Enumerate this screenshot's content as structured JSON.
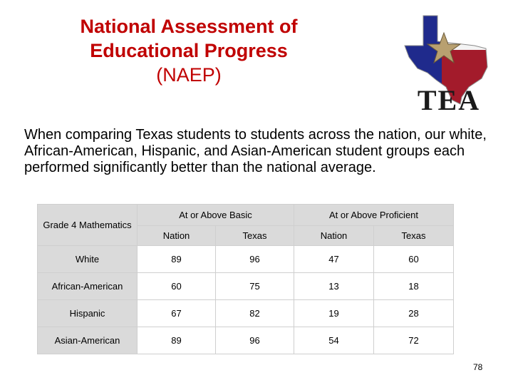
{
  "title": {
    "line1": "National Assessment of",
    "line2": "Educational Progress",
    "line3": "(NAEP)"
  },
  "logo": {
    "text": "TEA",
    "icon": "texas-flag-star-icon",
    "colors": {
      "blue": "#1f2a8c",
      "red": "#a31b2b",
      "gold": "#b8a070",
      "gray": "#8a8a8a"
    }
  },
  "intro": "When comparing Texas students to students across the nation, our white, African-American, Hispanic, and Asian-American student groups each performed significantly better than the national average.",
  "table": {
    "row_header": "Grade 4 Mathematics",
    "groups": [
      "At or Above Basic",
      "At or Above Proficient"
    ],
    "subheaders": [
      "Nation",
      "Texas",
      "Nation",
      "Texas"
    ],
    "rows": [
      {
        "label": "White",
        "values": [
          "89",
          "96",
          "47",
          "60"
        ]
      },
      {
        "label": "African-American",
        "values": [
          "60",
          "75",
          "13",
          "18"
        ]
      },
      {
        "label": "Hispanic",
        "values": [
          "67",
          "82",
          "19",
          "28"
        ]
      },
      {
        "label": "Asian-American",
        "values": [
          "89",
          "96",
          "54",
          "72"
        ]
      }
    ]
  },
  "page_number": "78"
}
